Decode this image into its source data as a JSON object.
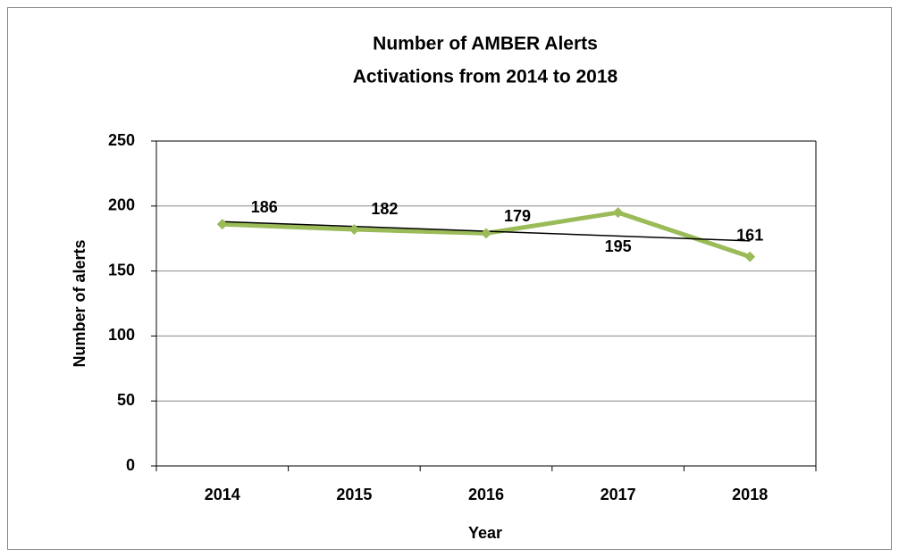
{
  "chart_data": {
    "type": "line",
    "title": [
      "Number of AMBER Alerts",
      "Activations from 2014 to 2018"
    ],
    "x_label": "Year",
    "y_label": "Number of alerts",
    "categories": [
      "2014",
      "2015",
      "2016",
      "2017",
      "2018"
    ],
    "series": [
      {
        "name": "Number of alerts",
        "color": "#9bbb59",
        "values": [
          186,
          182,
          179,
          195,
          161
        ]
      }
    ],
    "trendline": true,
    "trendline_color": "#000000",
    "ylim": [
      0,
      250
    ],
    "yticks": [
      0,
      50,
      100,
      150,
      200,
      250
    ],
    "grid": true,
    "legend": false
  }
}
